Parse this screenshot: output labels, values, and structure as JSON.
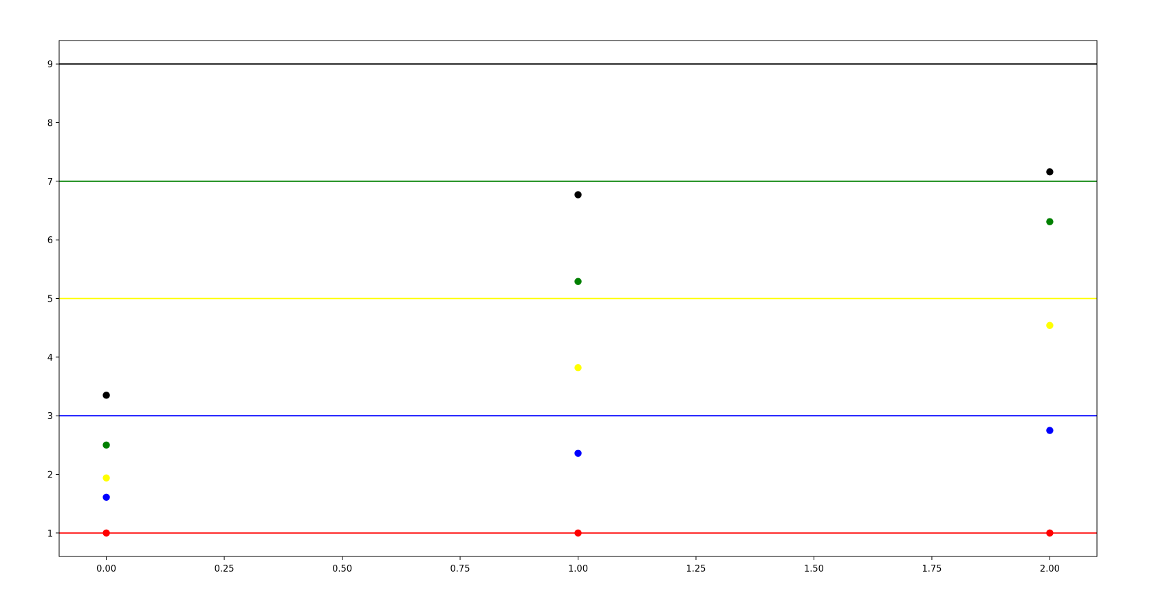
{
  "chart_data": {
    "type": "scatter",
    "title": "",
    "xlabel": "",
    "ylabel": "",
    "xlim": [
      -0.1,
      2.1
    ],
    "ylim": [
      0.6,
      9.4
    ],
    "x_ticks": [
      0.0,
      0.25,
      0.5,
      0.75,
      1.0,
      1.25,
      1.5,
      1.75,
      2.0
    ],
    "x_tick_labels": [
      "0.00",
      "0.25",
      "0.50",
      "0.75",
      "1.00",
      "1.25",
      "1.50",
      "1.75",
      "2.00"
    ],
    "y_ticks": [
      1,
      2,
      3,
      4,
      5,
      6,
      7,
      8,
      9
    ],
    "y_tick_labels": [
      "1",
      "2",
      "3",
      "4",
      "5",
      "6",
      "7",
      "8",
      "9"
    ],
    "grid": false,
    "legend": "none",
    "x": [
      0,
      1,
      2
    ],
    "series": [
      {
        "color": "#ff0000",
        "values": [
          1.0,
          1.0,
          1.0
        ]
      },
      {
        "color": "#0000ff",
        "values": [
          1.61,
          2.36,
          2.75
        ]
      },
      {
        "color": "#ffff00",
        "values": [
          1.94,
          3.82,
          4.54
        ]
      },
      {
        "color": "#008000",
        "values": [
          2.5,
          5.29,
          6.31
        ]
      },
      {
        "color": "#000000",
        "values": [
          3.35,
          6.77,
          7.16
        ]
      }
    ],
    "hlines": [
      {
        "y": 1,
        "color": "#ff0000"
      },
      {
        "y": 3,
        "color": "#0000ff"
      },
      {
        "y": 5,
        "color": "#ffff00"
      },
      {
        "y": 7,
        "color": "#008000"
      },
      {
        "y": 9,
        "color": "#000000"
      }
    ]
  }
}
